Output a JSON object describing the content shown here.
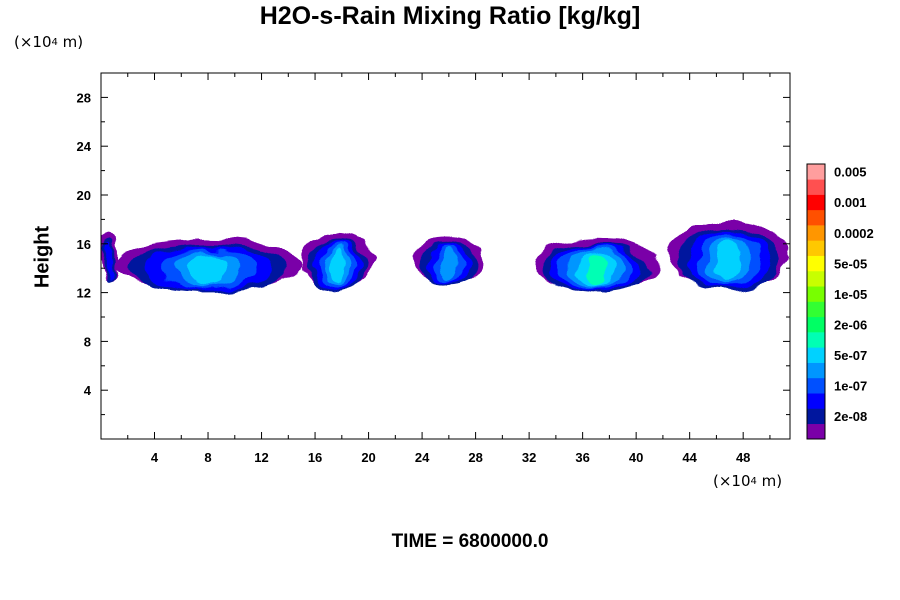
{
  "chart_data": {
    "type": "heatmap",
    "title": "H2O-s-Rain Mixing Ratio [kg/kg]",
    "xlabel": "",
    "ylabel": "Height",
    "x_unit_label": {
      "prefix": "(×10",
      "exp": "4",
      "suffix": " m)"
    },
    "y_unit_label": {
      "prefix": "(×10",
      "exp": "4",
      "suffix": " m)"
    },
    "footer": "TIME = 6800000.0",
    "xlim": [
      0,
      51.5
    ],
    "ylim": [
      0,
      30
    ],
    "x_ticks": [
      4,
      8,
      12,
      16,
      20,
      24,
      28,
      32,
      36,
      40,
      44,
      48
    ],
    "y_ticks": [
      4,
      8,
      12,
      16,
      20,
      24,
      28
    ],
    "colorbar": {
      "colors": [
        "#7a00a8",
        "#00169e",
        "#0000ff",
        "#0050ff",
        "#0096ff",
        "#00d2ff",
        "#00ffb4",
        "#00ff64",
        "#32ff32",
        "#78ff00",
        "#c8ff00",
        "#ffff00",
        "#ffc800",
        "#ff9600",
        "#ff5000",
        "#ff0000",
        "#ff5050",
        "#ff9e9e"
      ],
      "tick_labels": [
        {
          "index": 1,
          "label": "2e-08"
        },
        {
          "index": 3,
          "label": "1e-07"
        },
        {
          "index": 5,
          "label": "5e-07"
        },
        {
          "index": 7,
          "label": "2e-06"
        },
        {
          "index": 9,
          "label": "1e-05"
        },
        {
          "index": 11,
          "label": "5e-05"
        },
        {
          "index": 13,
          "label": "0.0002"
        },
        {
          "index": 15,
          "label": "0.001"
        },
        {
          "index": 17,
          "label": "0.005"
        }
      ]
    },
    "rain_regions": [
      {
        "x": [
          0.0,
          1.2
        ],
        "y": [
          12.8,
          17.0
        ],
        "level": 2
      },
      {
        "x": [
          1.0,
          15.0
        ],
        "y": [
          12.2,
          16.4
        ],
        "level": 5
      },
      {
        "x": [
          15.0,
          20.3
        ],
        "y": [
          12.2,
          16.9
        ],
        "level": 5
      },
      {
        "x": [
          23.3,
          28.6
        ],
        "y": [
          12.8,
          16.6
        ],
        "level": 4
      },
      {
        "x": [
          32.4,
          41.7
        ],
        "y": [
          12.1,
          16.5
        ],
        "level": 6
      },
      {
        "x": [
          42.3,
          51.5
        ],
        "y": [
          12.4,
          17.8
        ],
        "level": 5
      }
    ]
  }
}
